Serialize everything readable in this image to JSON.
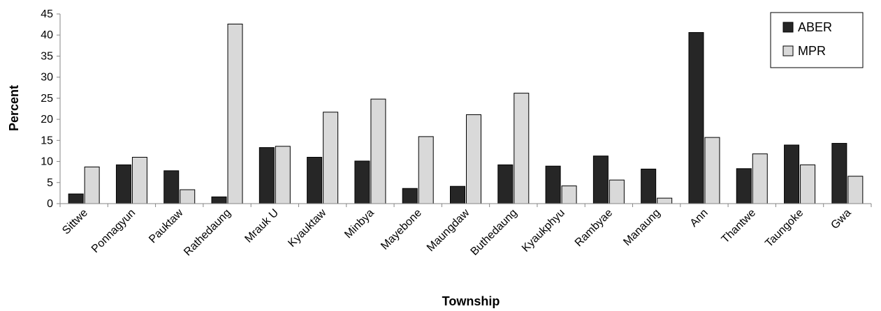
{
  "chart_data": {
    "type": "bar",
    "title": "",
    "xlabel": "Township",
    "ylabel": "Percent",
    "ylim": [
      0,
      45
    ],
    "yticks": [
      0,
      5,
      10,
      15,
      20,
      25,
      30,
      35,
      40,
      45
    ],
    "grid": false,
    "legend_position": "top-right",
    "categories": [
      "Sittwe",
      "Ponnagyun",
      "Pauktaw",
      "Rathedaung",
      "Mrauk U",
      "Kyauktaw",
      "Minbya",
      "Mayebone",
      "Maungdaw",
      "Buthedaung",
      "Kyaukphyu",
      "Rambyae",
      "Manaung",
      "Ann",
      "Thantwe",
      "Taungoke",
      "Gwa"
    ],
    "series": [
      {
        "name": "ABER",
        "color": "#262626",
        "values": [
          2.3,
          9.2,
          7.8,
          1.6,
          13.3,
          11.0,
          10.1,
          3.6,
          4.1,
          9.2,
          8.9,
          11.3,
          8.2,
          40.6,
          8.3,
          13.9,
          14.3
        ]
      },
      {
        "name": "MPR",
        "color": "#d9d9d9",
        "values": [
          8.7,
          11.0,
          3.3,
          42.6,
          13.6,
          21.7,
          24.8,
          15.9,
          21.1,
          26.2,
          4.2,
          5.6,
          1.3,
          15.7,
          11.8,
          9.2,
          6.5
        ]
      }
    ]
  }
}
